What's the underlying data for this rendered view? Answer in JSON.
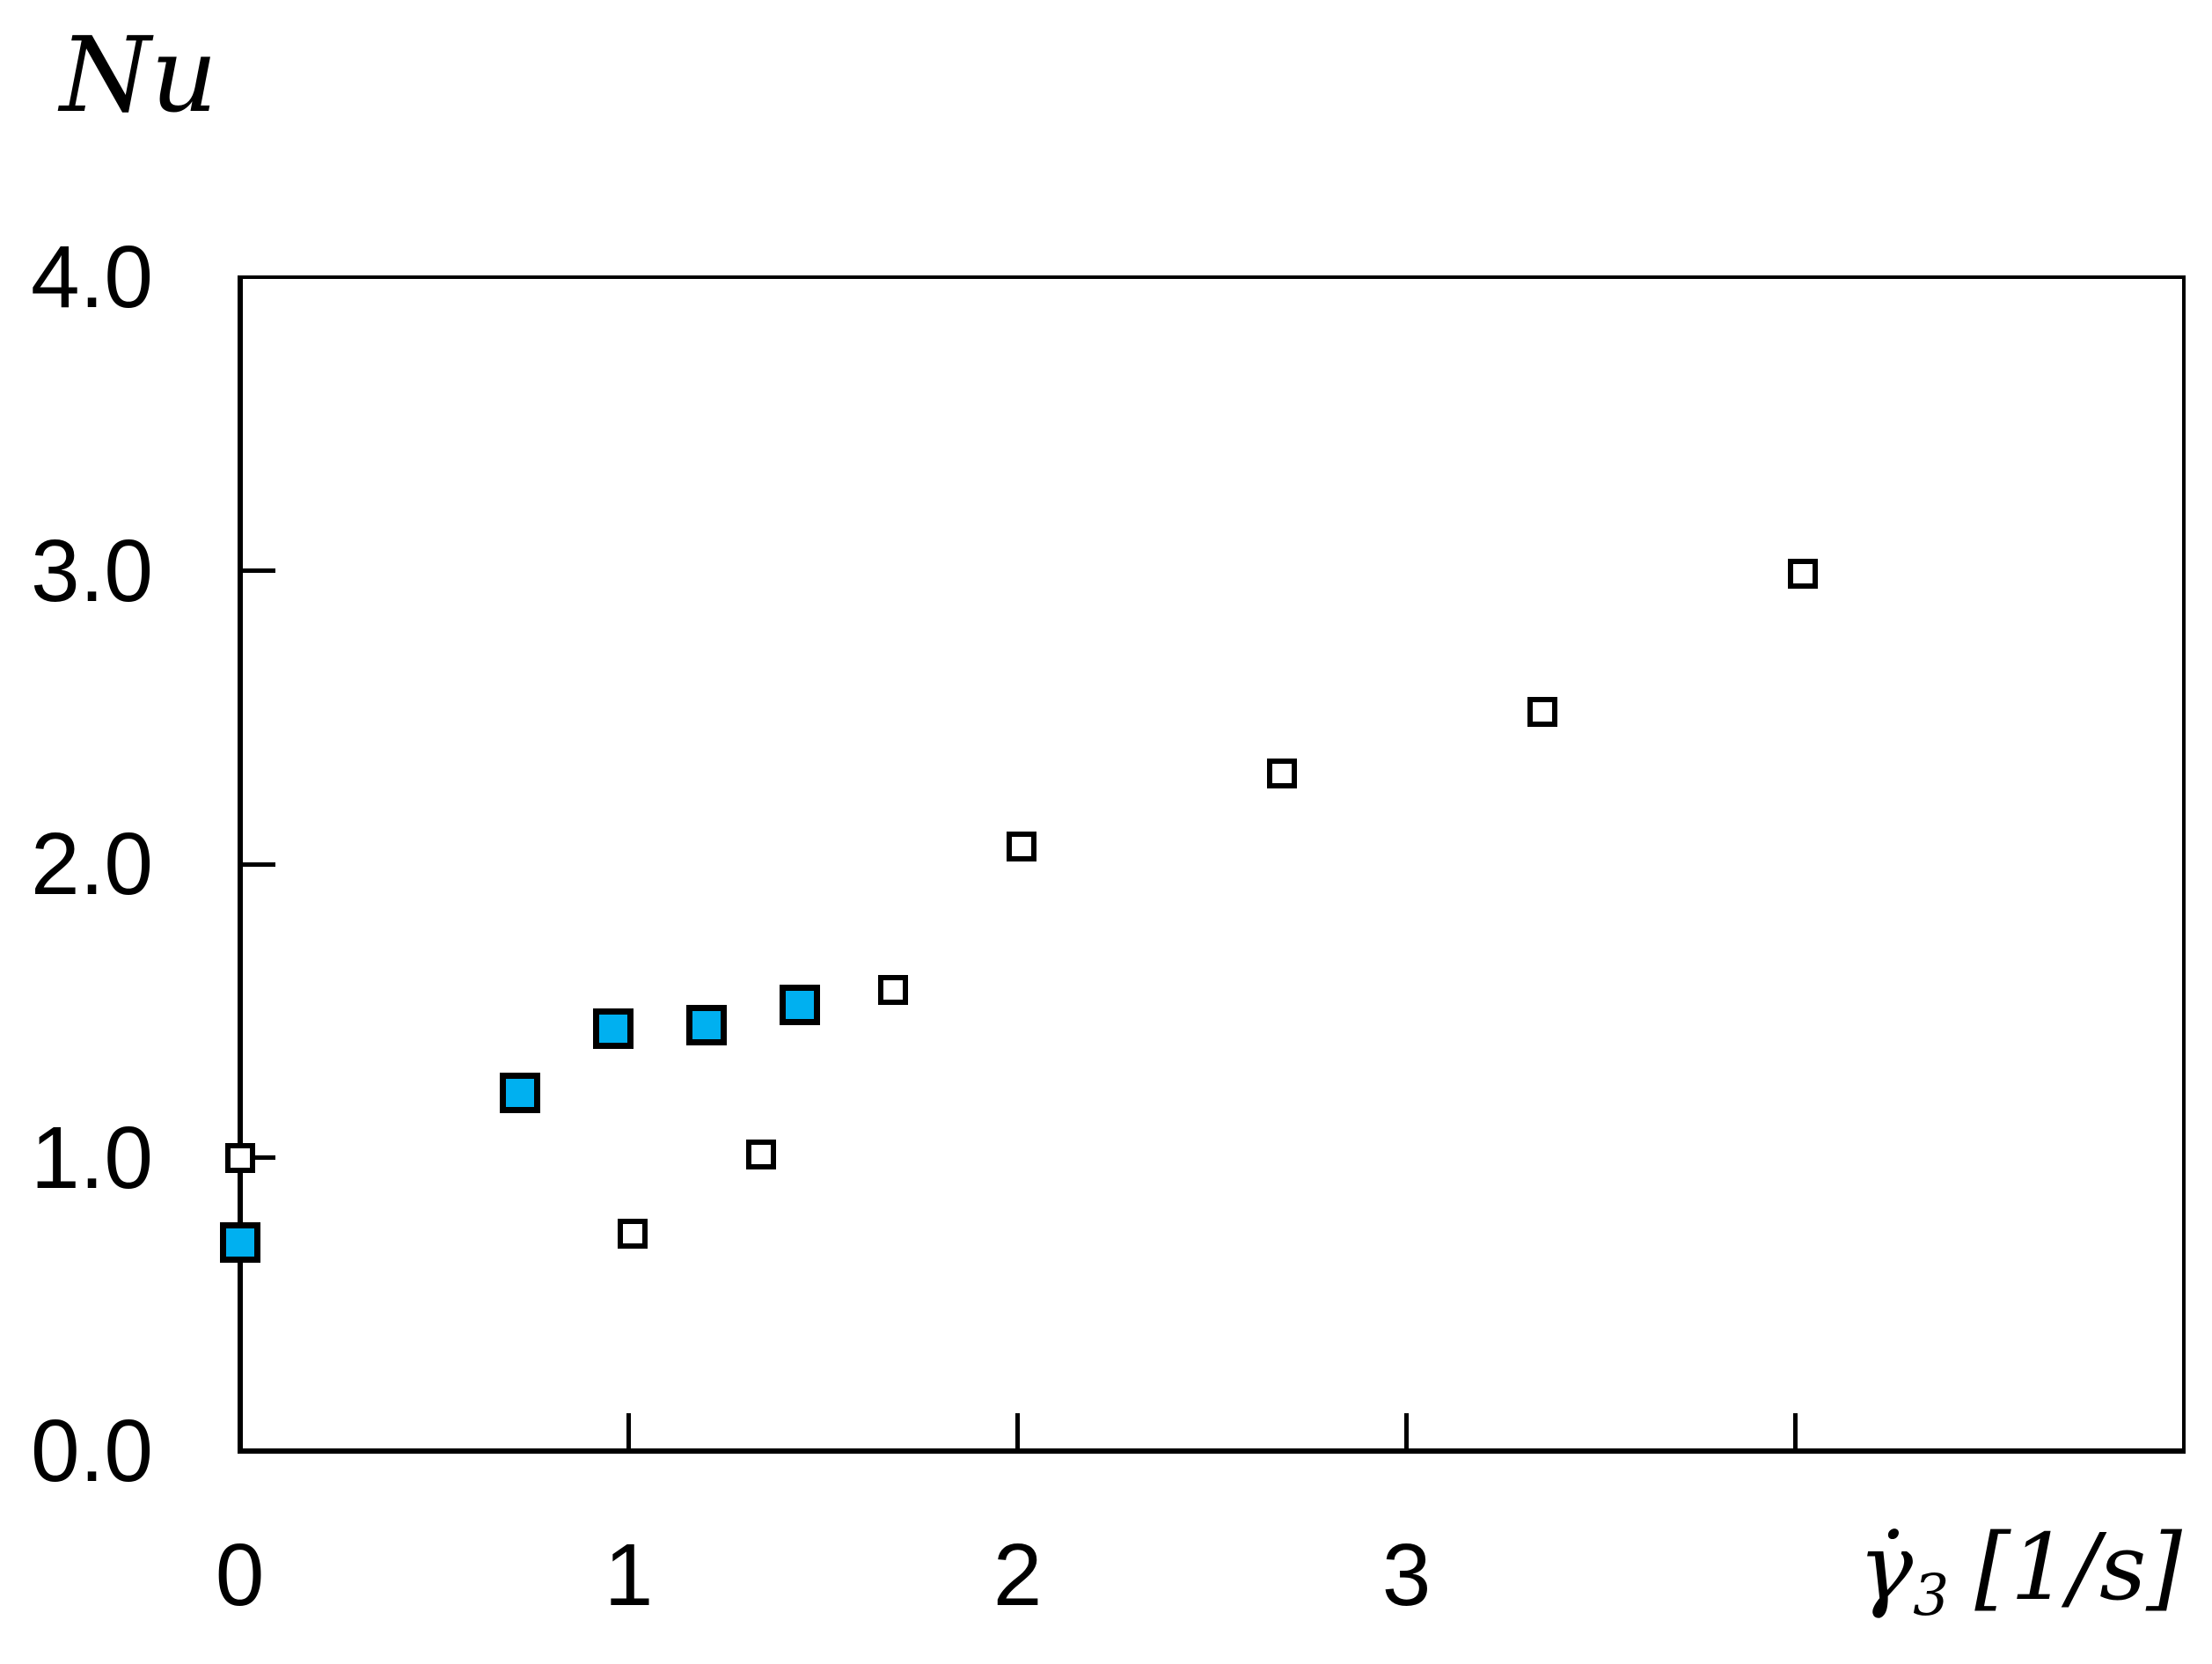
{
  "figure": {
    "y_axis_title": "Nu",
    "x_axis_label": {
      "symbol": "γ̇",
      "subscript": "3",
      "unit": "[1/s]"
    }
  },
  "chart_data": {
    "type": "scatter",
    "title": "",
    "ylabel": "Nu",
    "xlabel": "γ̇₃ [1/s]",
    "xlim": [
      0,
      5
    ],
    "ylim": [
      0,
      4.0
    ],
    "grid": false,
    "legend_position": "none",
    "axis_color": "#000000",
    "background_color": "#ffffff",
    "x_ticks": [
      {
        "value": 0,
        "label": "0",
        "mark": false
      },
      {
        "value": 1,
        "label": "1",
        "mark": true
      },
      {
        "value": 2,
        "label": "2",
        "mark": true
      },
      {
        "value": 3,
        "label": "3",
        "mark": true
      },
      {
        "value": 4,
        "label": "",
        "mark": true
      }
    ],
    "y_ticks": [
      {
        "value": 0,
        "label": "0.0",
        "mark": false
      },
      {
        "value": 1,
        "label": "1.0",
        "mark": true
      },
      {
        "value": 2,
        "label": "2.0",
        "mark": true
      },
      {
        "value": 3,
        "label": "3.0",
        "mark": true
      },
      {
        "value": 4,
        "label": "4.0",
        "mark": false
      }
    ],
    "series": [
      {
        "name": "filled blue squares",
        "marker": "filled-square",
        "color": "#00B0F0",
        "points": [
          [
            0,
            0.71
          ],
          [
            0.72,
            1.22
          ],
          [
            0.96,
            1.44
          ],
          [
            1.2,
            1.45
          ],
          [
            1.44,
            1.52
          ]
        ]
      },
      {
        "name": "open squares",
        "marker": "open-square",
        "color": "#FFFFFF",
        "points": [
          [
            0,
            1.0
          ],
          [
            1.01,
            0.74
          ],
          [
            1.34,
            1.01
          ],
          [
            1.68,
            1.57
          ],
          [
            2.01,
            2.06
          ],
          [
            2.68,
            2.31
          ],
          [
            3.35,
            2.52
          ],
          [
            4.02,
            2.99
          ]
        ]
      }
    ]
  }
}
